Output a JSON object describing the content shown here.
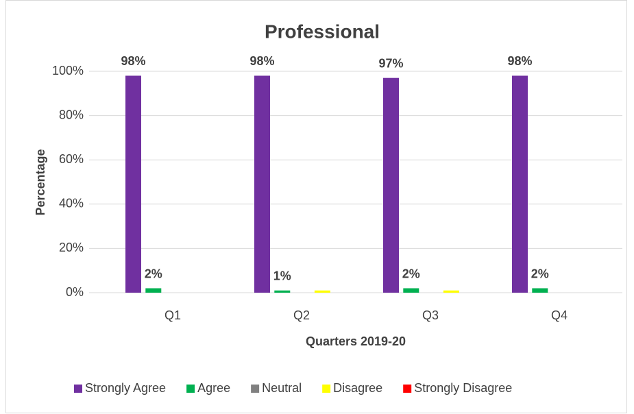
{
  "chart_data": {
    "type": "bar",
    "title": "Professional",
    "x_label": "Quarters 2019-20",
    "y_label": "Percentage",
    "categories": [
      "Q1",
      "Q2",
      "Q3",
      "Q4"
    ],
    "series": [
      {
        "name": "Strongly Agree",
        "color": "#7030a0",
        "values": [
          98,
          98,
          97,
          98
        ],
        "value_labels": [
          "98%",
          "98%",
          "97%",
          "98%"
        ]
      },
      {
        "name": "Agree",
        "color": "#00b050",
        "values": [
          2,
          1,
          2,
          2
        ],
        "value_labels": [
          "2%",
          "1%",
          "2%",
          "2%"
        ]
      },
      {
        "name": "Neutral",
        "color": "#808080",
        "values": [
          0,
          0,
          0,
          0
        ]
      },
      {
        "name": "Disagree",
        "color": "#ffff00",
        "values": [
          0,
          1,
          1,
          0
        ]
      },
      {
        "name": "Strongly Disagree",
        "color": "#ff0000",
        "values": [
          0,
          0,
          0,
          0
        ]
      }
    ],
    "ylim": [
      0,
      100
    ],
    "yticks": [
      {
        "value": 0,
        "label": "0%"
      },
      {
        "value": 20,
        "label": "20%"
      },
      {
        "value": 40,
        "label": "40%"
      },
      {
        "value": 60,
        "label": "60%"
      },
      {
        "value": 80,
        "label": "80%"
      },
      {
        "value": 100,
        "label": "100%"
      }
    ],
    "grid": true,
    "legend": "bottom"
  }
}
